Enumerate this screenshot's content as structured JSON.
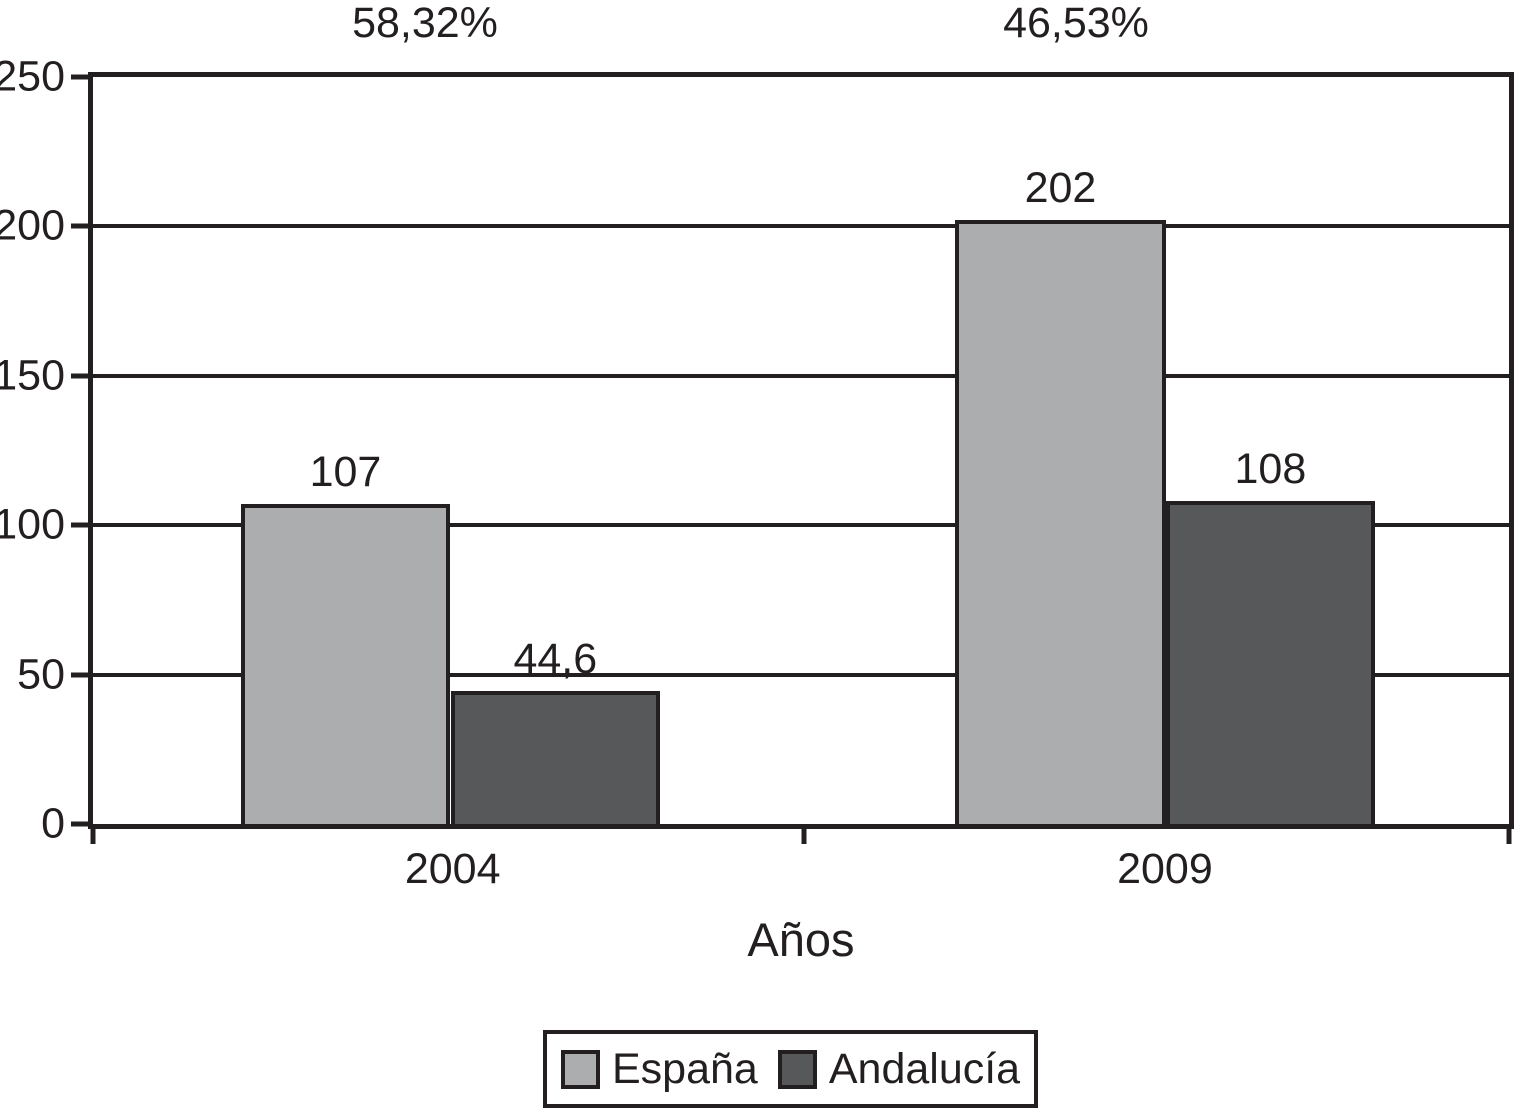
{
  "chart_data": {
    "type": "bar",
    "categories": [
      "2004",
      "2009"
    ],
    "series": [
      {
        "name": "España",
        "color": "#abadaf",
        "values": [
          107,
          202
        ],
        "value_labels": [
          "107",
          "202"
        ]
      },
      {
        "name": "Andalucía",
        "color": "#57585a",
        "values": [
          44.6,
          108
        ],
        "value_labels": [
          "44,6",
          "108"
        ]
      }
    ],
    "group_annotations": [
      {
        "text": "58,32%",
        "category": "2004"
      },
      {
        "text": "46,53%",
        "category": "2009"
      }
    ],
    "title": "",
    "xlabel": "Años",
    "ylabel": "",
    "ylim": [
      0,
      250
    ],
    "yticks_top_to_bottom": [
      "250",
      "200",
      "150",
      "100",
      "50",
      "0"
    ],
    "grid": true,
    "legend_position": "bottom-center",
    "axis_color": "#231f20",
    "background_color": "#ffffff"
  }
}
